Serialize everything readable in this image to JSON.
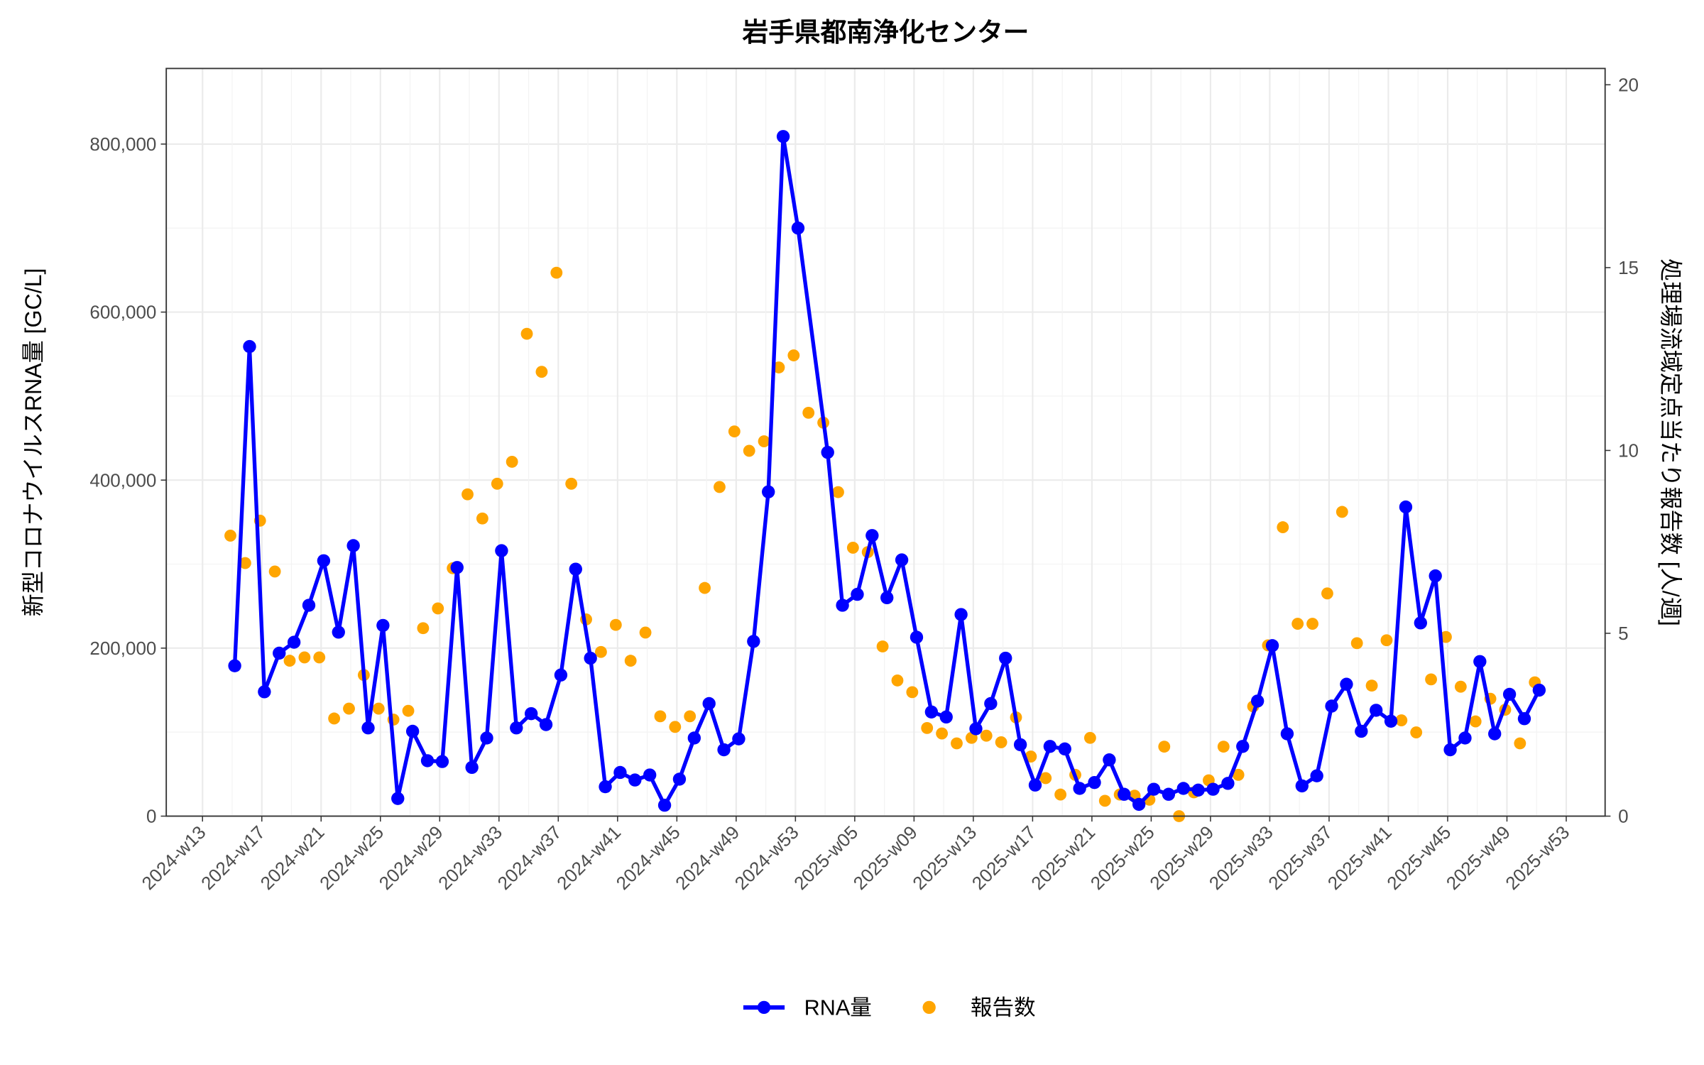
{
  "chart_data": {
    "type": "line+scatter",
    "title": "岩手県都南浄化センター",
    "ylabel": "新型コロナウイルスRNA量 [GC/L]",
    "y2label": "処理場流域定点当たり報告数 [人/週]",
    "ylim": [
      0,
      880000
    ],
    "y2lim": [
      0,
      20
    ],
    "yticks": [
      0,
      200000,
      400000,
      600000,
      800000
    ],
    "ytick_labels": [
      "0",
      "200,000",
      "400,000",
      "600,000",
      "800,000"
    ],
    "y2ticks": [
      0,
      5,
      10,
      15,
      20
    ],
    "y2tick_labels": [
      "0",
      "5",
      "10",
      "15",
      "20"
    ],
    "xtick_labels": [
      "2024-w13",
      "2024-w17",
      "2024-w21",
      "2024-w25",
      "2024-w29",
      "2024-w33",
      "2024-w37",
      "2024-w41",
      "2024-w45",
      "2024-w49",
      "2024-w53",
      "2025-w05",
      "2025-w09",
      "2025-w13",
      "2025-w17",
      "2025-w21",
      "2025-w25",
      "2025-w29",
      "2025-w33",
      "2025-w37",
      "2025-w41",
      "2025-w45",
      "2025-w49",
      "2025-w53"
    ],
    "grid": true,
    "legend_position": "bottom",
    "x": [
      "2024-w14",
      "2024-w15",
      "2024-w16",
      "2024-w17",
      "2024-w18",
      "2024-w19",
      "2024-w20",
      "2024-w21",
      "2024-w22",
      "2024-w23",
      "2024-w24",
      "2024-w25",
      "2024-w26",
      "2024-w27",
      "2024-w28",
      "2024-w29",
      "2024-w30",
      "2024-w31",
      "2024-w32",
      "2024-w33",
      "2024-w34",
      "2024-w35",
      "2024-w36",
      "2024-w37",
      "2024-w38",
      "2024-w39",
      "2024-w40",
      "2024-w41",
      "2024-w42",
      "2024-w43",
      "2024-w44",
      "2024-w45",
      "2024-w46",
      "2024-w47",
      "2024-w48",
      "2024-w49",
      "2024-w50",
      "2024-w51",
      "2024-w52",
      "2024-w53",
      "2025-w01",
      "2025-w02",
      "2025-w03",
      "2025-w04",
      "2025-w05",
      "2025-w06",
      "2025-w07",
      "2025-w08",
      "2025-w09",
      "2025-w10",
      "2025-w11",
      "2025-w12",
      "2025-w13",
      "2025-w14",
      "2025-w15",
      "2025-w16",
      "2025-w17",
      "2025-w18",
      "2025-w19",
      "2025-w20",
      "2025-w21",
      "2025-w22",
      "2025-w23",
      "2025-w24",
      "2025-w25",
      "2025-w26",
      "2025-w27",
      "2025-w28",
      "2025-w29",
      "2025-w30",
      "2025-w31",
      "2025-w32",
      "2025-w33",
      "2025-w34",
      "2025-w35",
      "2025-w36",
      "2025-w37",
      "2025-w38",
      "2025-w39",
      "2025-w40",
      "2025-w41",
      "2025-w42",
      "2025-w43",
      "2025-w44",
      "2025-w45",
      "2025-w46",
      "2025-w47",
      "2025-w48",
      "2025-w49"
    ],
    "series": [
      {
        "name": "RNA量",
        "axis": "left",
        "kind": "line+points",
        "color": "#0000FF",
        "values": [
          179000,
          559000,
          148000,
          194000,
          207000,
          251000,
          304000,
          219000,
          322000,
          105000,
          227000,
          21000,
          101000,
          66000,
          65000,
          296000,
          58000,
          93000,
          316000,
          105000,
          122000,
          109000,
          168000,
          294000,
          188000,
          35000,
          52000,
          43000,
          49000,
          13000,
          44000,
          93000,
          134000,
          79000,
          92000,
          208000,
          386000,
          809000,
          700000,
          null,
          433000,
          251000,
          264000,
          334000,
          260000,
          305000,
          213000,
          124000,
          118000,
          240000,
          104000,
          134000,
          188000,
          85000,
          37000,
          83000,
          80000,
          33000,
          40000,
          67000,
          26000,
          14000,
          32000,
          26000,
          33000,
          31000,
          32000,
          39000,
          83000,
          137000,
          203000,
          98000,
          36000,
          48000,
          131000,
          157000,
          101000,
          126000,
          113000,
          368000,
          230000,
          286000,
          79000,
          93000,
          184000,
          98000,
          145000,
          116000,
          150000
        ]
      },
      {
        "name": "報告数",
        "axis": "right",
        "kind": "points",
        "color": "#FFA500",
        "values": [
          7.67,
          6.92,
          8.08,
          6.69,
          4.25,
          4.34,
          4.34,
          2.67,
          2.94,
          3.86,
          2.94,
          2.64,
          2.88,
          5.14,
          5.68,
          6.78,
          8.8,
          8.14,
          9.09,
          9.69,
          13.19,
          12.15,
          14.86,
          9.09,
          5.38,
          4.49,
          5.23,
          4.25,
          5.02,
          2.73,
          2.44,
          2.73,
          6.24,
          9.0,
          10.52,
          9.99,
          10.25,
          12.27,
          12.6,
          11.03,
          10.76,
          8.86,
          7.34,
          7.22,
          4.64,
          3.71,
          3.39,
          2.41,
          2.26,
          1.99,
          2.14,
          2.2,
          2.02,
          2.7,
          1.63,
          1.04,
          0.59,
          1.13,
          2.14,
          0.42,
          0.59,
          0.56,
          0.45,
          1.9,
          0.0,
          0.65,
          0.98,
          1.9,
          1.13,
          3.0,
          4.67,
          7.9,
          5.26,
          5.26,
          6.09,
          8.32,
          4.73,
          3.57,
          4.81,
          2.62,
          2.29,
          3.74,
          4.9,
          3.54,
          2.59,
          3.21,
          2.91,
          1.99,
          3.66
        ]
      }
    ]
  }
}
